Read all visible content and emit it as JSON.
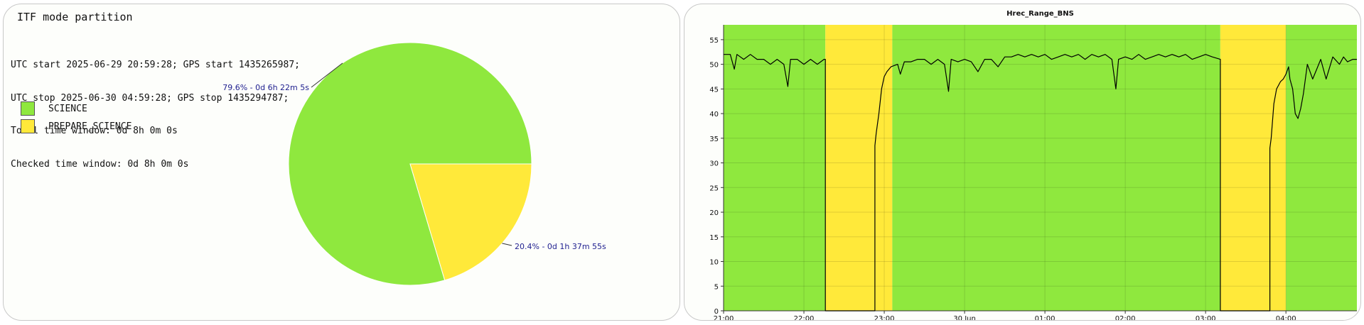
{
  "left_panel": {
    "title": "ITF mode partition",
    "info": [
      "UTC start 2025-06-29 20:59:28; GPS start 1435265987;",
      "UTC stop 2025-06-30 04:59:28; GPS stop 1435294787;",
      "Total time window: 0d 8h 0m 0s",
      "Checked time window: 0d 8h 0m 0s"
    ],
    "legend": [
      {
        "label": "SCIENCE",
        "color": "#8fe83e"
      },
      {
        "label": "PREPARE_SCIENCE",
        "color": "#ffe93a"
      }
    ]
  },
  "right_panel": {
    "title": "Hrec_Range_BNS"
  },
  "chart_data": [
    {
      "type": "pie",
      "slices": [
        {
          "name": "SCIENCE",
          "value": 79.6,
          "label": "79.6% - 0d 6h 22m 5s",
          "color": "#8fe83e"
        },
        {
          "name": "PREPARE_SCIENCE",
          "value": 20.4,
          "label": "20.4% - 0d 1h 37m 55s",
          "color": "#ffe93a"
        }
      ]
    },
    {
      "type": "line",
      "title": "Hrec_Range_BNS",
      "xlabel": "",
      "ylabel": "",
      "xlim": [
        "2025-06-29 21:00",
        "2025-06-30 04:53"
      ],
      "ylim": [
        0,
        58
      ],
      "x_ticks": [
        {
          "t": "2025-06-29 21:00",
          "label": "21:00"
        },
        {
          "t": "2025-06-29 22:00",
          "label": "22:00"
        },
        {
          "t": "2025-06-29 23:00",
          "label": "23:00"
        },
        {
          "t": "2025-06-30 00:00",
          "label": "30 Jun"
        },
        {
          "t": "2025-06-30 01:00",
          "label": "01:00"
        },
        {
          "t": "2025-06-30 02:00",
          "label": "02:00"
        },
        {
          "t": "2025-06-30 03:00",
          "label": "03:00"
        },
        {
          "t": "2025-06-30 04:00",
          "label": "04:00"
        }
      ],
      "y_ticks": [
        0,
        5,
        10,
        15,
        20,
        25,
        30,
        35,
        40,
        45,
        50,
        55
      ],
      "grid": true,
      "bands": [
        {
          "start": "2025-06-29 21:00",
          "end": "2025-06-29 22:16",
          "mode": "SCIENCE",
          "color": "#8fe83e"
        },
        {
          "start": "2025-06-29 22:16",
          "end": "2025-06-29 23:06",
          "mode": "PREPARE_SCIENCE",
          "color": "#ffe93a"
        },
        {
          "start": "2025-06-29 23:06",
          "end": "2025-06-30 03:11",
          "mode": "SCIENCE",
          "color": "#8fe83e"
        },
        {
          "start": "2025-06-30 03:11",
          "end": "2025-06-30 04:00",
          "mode": "PREPARE_SCIENCE",
          "color": "#ffe93a"
        },
        {
          "start": "2025-06-30 04:00",
          "end": "2025-06-30 04:53",
          "mode": "SCIENCE",
          "color": "#8fe83e"
        }
      ],
      "series": [
        {
          "points": [
            [
              "2025-06-29 21:00",
              52
            ],
            [
              "2025-06-29 21:05",
              52
            ],
            [
              "2025-06-29 21:08",
              49
            ],
            [
              "2025-06-29 21:10",
              52
            ],
            [
              "2025-06-29 21:15",
              51
            ],
            [
              "2025-06-29 21:20",
              52
            ],
            [
              "2025-06-29 21:25",
              51
            ],
            [
              "2025-06-29 21:30",
              51
            ],
            [
              "2025-06-29 21:35",
              50
            ],
            [
              "2025-06-29 21:40",
              51
            ],
            [
              "2025-06-29 21:45",
              50
            ],
            [
              "2025-06-29 21:48",
              45.5
            ],
            [
              "2025-06-29 21:50",
              51
            ],
            [
              "2025-06-29 21:55",
              51
            ],
            [
              "2025-06-29 22:00",
              50
            ],
            [
              "2025-06-29 22:05",
              51
            ],
            [
              "2025-06-29 22:10",
              50
            ],
            [
              "2025-06-29 22:15",
              51
            ],
            [
              "2025-06-29 22:16",
              51
            ],
            [
              "2025-06-29 22:16",
              0
            ],
            [
              "2025-06-29 22:53",
              0
            ],
            [
              "2025-06-29 22:53",
              33.5
            ],
            [
              "2025-06-29 22:54",
              36
            ],
            [
              "2025-06-29 22:56",
              40
            ],
            [
              "2025-06-29 22:58",
              45
            ],
            [
              "2025-06-29 23:00",
              47.5
            ],
            [
              "2025-06-29 23:02",
              48.5
            ],
            [
              "2025-06-29 23:05",
              49.5
            ],
            [
              "2025-06-29 23:10",
              50
            ],
            [
              "2025-06-29 23:12",
              48
            ],
            [
              "2025-06-29 23:15",
              50.5
            ],
            [
              "2025-06-29 23:20",
              50.5
            ],
            [
              "2025-06-29 23:25",
              51
            ],
            [
              "2025-06-29 23:30",
              51
            ],
            [
              "2025-06-29 23:35",
              50
            ],
            [
              "2025-06-29 23:40",
              51
            ],
            [
              "2025-06-29 23:45",
              50
            ],
            [
              "2025-06-29 23:48",
              44.5
            ],
            [
              "2025-06-29 23:50",
              51
            ],
            [
              "2025-06-29 23:55",
              50.5
            ],
            [
              "2025-06-30 00:00",
              51
            ],
            [
              "2025-06-30 00:05",
              50.5
            ],
            [
              "2025-06-30 00:10",
              48.5
            ],
            [
              "2025-06-30 00:15",
              51
            ],
            [
              "2025-06-30 00:20",
              51
            ],
            [
              "2025-06-30 00:25",
              49.5
            ],
            [
              "2025-06-30 00:30",
              51.5
            ],
            [
              "2025-06-30 00:35",
              51.5
            ],
            [
              "2025-06-30 00:40",
              52
            ],
            [
              "2025-06-30 00:45",
              51.5
            ],
            [
              "2025-06-30 00:50",
              52
            ],
            [
              "2025-06-30 00:55",
              51.5
            ],
            [
              "2025-06-30 01:00",
              52
            ],
            [
              "2025-06-30 01:05",
              51
            ],
            [
              "2025-06-30 01:10",
              51.5
            ],
            [
              "2025-06-30 01:15",
              52
            ],
            [
              "2025-06-30 01:20",
              51.5
            ],
            [
              "2025-06-30 01:25",
              52
            ],
            [
              "2025-06-30 01:30",
              51
            ],
            [
              "2025-06-30 01:35",
              52
            ],
            [
              "2025-06-30 01:40",
              51.5
            ],
            [
              "2025-06-30 01:45",
              52
            ],
            [
              "2025-06-30 01:50",
              51
            ],
            [
              "2025-06-30 01:53",
              45
            ],
            [
              "2025-06-30 01:55",
              51
            ],
            [
              "2025-06-30 02:00",
              51.5
            ],
            [
              "2025-06-30 02:05",
              51
            ],
            [
              "2025-06-30 02:10",
              52
            ],
            [
              "2025-06-30 02:15",
              51
            ],
            [
              "2025-06-30 02:20",
              51.5
            ],
            [
              "2025-06-30 02:25",
              52
            ],
            [
              "2025-06-30 02:30",
              51.5
            ],
            [
              "2025-06-30 02:35",
              52
            ],
            [
              "2025-06-30 02:40",
              51.5
            ],
            [
              "2025-06-30 02:45",
              52
            ],
            [
              "2025-06-30 02:50",
              51
            ],
            [
              "2025-06-30 02:55",
              51.5
            ],
            [
              "2025-06-30 03:00",
              52
            ],
            [
              "2025-06-30 03:05",
              51.5
            ],
            [
              "2025-06-30 03:11",
              51
            ],
            [
              "2025-06-30 03:11",
              0
            ],
            [
              "2025-06-30 03:48",
              0
            ],
            [
              "2025-06-30 03:48",
              33
            ],
            [
              "2025-06-30 03:49",
              35
            ],
            [
              "2025-06-30 03:51",
              42
            ],
            [
              "2025-06-30 03:53",
              45
            ],
            [
              "2025-06-30 03:56",
              46.5
            ],
            [
              "2025-06-30 03:58",
              47
            ],
            [
              "2025-06-30 04:00",
              48
            ],
            [
              "2025-06-30 04:02",
              49.5
            ],
            [
              "2025-06-30 04:03",
              47
            ],
            [
              "2025-06-30 04:05",
              45
            ],
            [
              "2025-06-30 04:07",
              40
            ],
            [
              "2025-06-30 04:09",
              39
            ],
            [
              "2025-06-30 04:11",
              41
            ],
            [
              "2025-06-30 04:13",
              44
            ],
            [
              "2025-06-30 04:16",
              50
            ],
            [
              "2025-06-30 04:20",
              47
            ],
            [
              "2025-06-30 04:23",
              49
            ],
            [
              "2025-06-30 04:26",
              51
            ],
            [
              "2025-06-30 04:30",
              47
            ],
            [
              "2025-06-30 04:35",
              51.5
            ],
            [
              "2025-06-30 04:40",
              50
            ],
            [
              "2025-06-30 04:43",
              51.5
            ],
            [
              "2025-06-30 04:46",
              50.5
            ],
            [
              "2025-06-30 04:50",
              51
            ],
            [
              "2025-06-30 04:53",
              51
            ]
          ]
        }
      ]
    }
  ]
}
